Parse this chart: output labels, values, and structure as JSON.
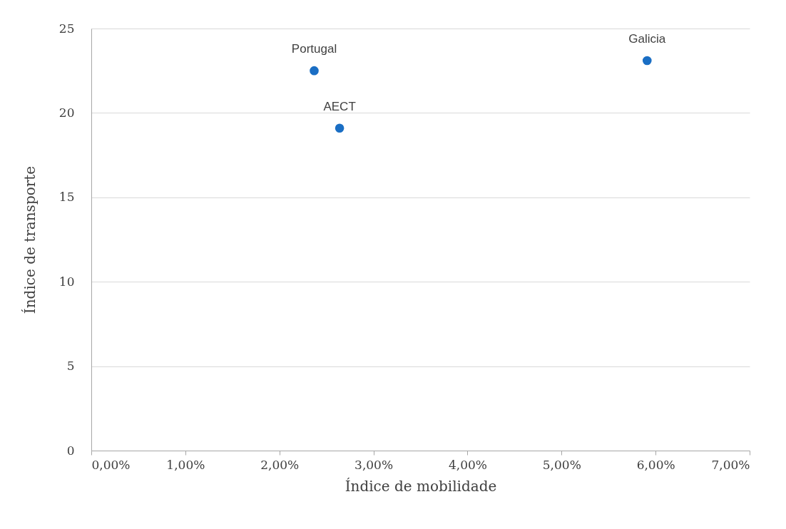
{
  "chart_data": {
    "type": "scatter",
    "xlabel": "Índice de mobilidade",
    "ylabel": "Índice de transporte",
    "x": [
      2.37,
      2.64,
      5.91
    ],
    "series": [
      {
        "color": "#1a6ec4",
        "values": [
          22.5,
          19.1,
          23.1
        ]
      }
    ],
    "xlim": [
      0,
      7
    ],
    "xticks": [
      {
        "value": 0,
        "label": "0,00%"
      },
      {
        "value": 1,
        "label": "1,00%"
      },
      {
        "value": 2,
        "label": "2,00%"
      },
      {
        "value": 3,
        "label": "3,00%"
      },
      {
        "value": 4,
        "label": "4,00%"
      },
      {
        "value": 5,
        "label": "5,00%"
      },
      {
        "value": 6,
        "label": "6,00%"
      },
      {
        "value": 7,
        "label": "7,00%"
      }
    ],
    "ylim": [
      0,
      25
    ],
    "yticks": [
      0,
      5,
      10,
      15,
      20,
      25
    ],
    "grid": "y",
    "marker": "circle",
    "annotations": [
      {
        "text": "Portugal",
        "x": 2.37,
        "y": 22.5
      },
      {
        "text": "AECT",
        "x": 2.64,
        "y": 19.1
      },
      {
        "text": "Galicia",
        "x": 5.91,
        "y": 23.1
      }
    ]
  }
}
